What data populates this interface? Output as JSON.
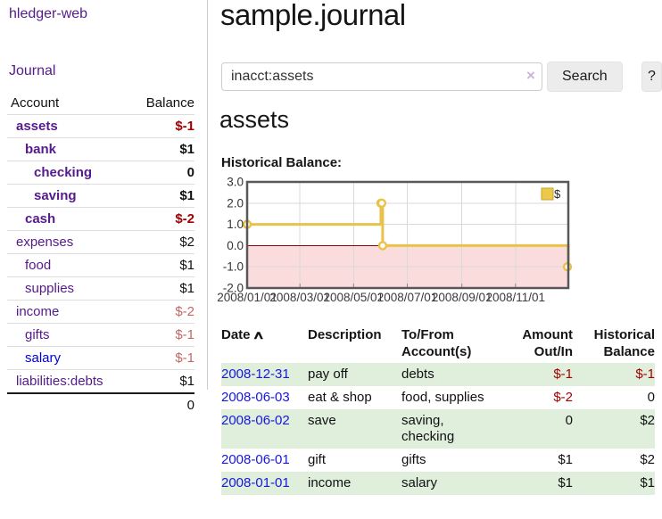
{
  "app": {
    "title": "hledger-web"
  },
  "colors": {
    "link_purple": "#551a8b",
    "link_blue": "#0000e0",
    "negative_strong": "#a40000",
    "negative_soft": "#c06868",
    "stripe_green": "#dfefdc",
    "series_gold": "#e8c24a",
    "chart_negative_bg": "#fadcdc",
    "chart_zero_line": "#8b0000"
  },
  "sidebar": {
    "nav": {
      "journal_label": "Journal"
    },
    "accounts_table": {
      "headers": {
        "account": "Account",
        "balance": "Balance"
      },
      "rows": [
        {
          "account": "assets",
          "indent": 1,
          "bold": true,
          "balance": "$-1",
          "balance_class": "neg-strong"
        },
        {
          "account": "bank",
          "indent": 2,
          "bold": true,
          "balance": "$1",
          "balance_class": "pos"
        },
        {
          "account": "checking",
          "indent": 3,
          "bold": true,
          "balance": "0",
          "balance_class": "pos"
        },
        {
          "account": "saving",
          "indent": 3,
          "bold": true,
          "balance": "$1",
          "balance_class": "pos"
        },
        {
          "account": "cash",
          "indent": 2,
          "bold": true,
          "balance": "$-2",
          "balance_class": "neg-strong"
        },
        {
          "account": "expenses",
          "indent": 1,
          "bold": false,
          "balance": "$2",
          "balance_class": "pos"
        },
        {
          "account": "food",
          "indent": 2,
          "bold": false,
          "balance": "$1",
          "balance_class": "pos"
        },
        {
          "account": "supplies",
          "indent": 2,
          "bold": false,
          "balance": "$1",
          "balance_class": "pos"
        },
        {
          "account": "income",
          "indent": 1,
          "bold": false,
          "balance": "$-2",
          "balance_class": "neg-soft"
        },
        {
          "account": "gifts",
          "indent": 2,
          "bold": false,
          "balance": "$-1",
          "balance_class": "neg-soft"
        },
        {
          "account": "salary",
          "indent": 2,
          "bold": false,
          "balance": "$-1",
          "balance_class": "neg-soft",
          "unvisited": true
        },
        {
          "account": "liabilities:debts",
          "indent": 1,
          "bold": false,
          "balance": "$1",
          "balance_class": "pos"
        }
      ],
      "total": "0"
    }
  },
  "main": {
    "title": "sample.journal",
    "search": {
      "value": "inacct:assets",
      "clear_icon": "×",
      "button_label": "Search",
      "help_label": "?"
    },
    "account_heading": "assets",
    "chart_label": "Historical Balance:"
  },
  "chart_data": {
    "type": "line",
    "step": true,
    "title": "Historical Balance:",
    "series": [
      {
        "name": "$",
        "color": "#e8c24a",
        "points": [
          [
            "2008-01-01",
            1
          ],
          [
            "2008-06-01",
            2
          ],
          [
            "2008-06-02",
            2
          ],
          [
            "2008-06-03",
            0
          ],
          [
            "2008-12-31",
            -1
          ]
        ]
      }
    ],
    "xlim": [
      "2008-01-01",
      "2008-12-31"
    ],
    "ylim": [
      -2,
      3
    ],
    "x_ticks": [
      {
        "date": "2008-01-01",
        "label": "2008/01/01"
      },
      {
        "date": "2008-03-01",
        "label": "2008/03/01"
      },
      {
        "date": "2008-05-01",
        "label": "2008/05/01"
      },
      {
        "date": "2008-07-01",
        "label": "2008/07/01"
      },
      {
        "date": "2008-09-01",
        "label": "2008/09/01"
      },
      {
        "date": "2008-11-01",
        "label": "2008/11/01"
      }
    ],
    "y_ticks": [
      {
        "value": 3,
        "label": "3.0"
      },
      {
        "value": 2,
        "label": "2.0"
      },
      {
        "value": 1,
        "label": "1.0"
      },
      {
        "value": 0,
        "label": "0.0"
      },
      {
        "value": -1,
        "label": "-1.0"
      },
      {
        "value": -2,
        "label": "-2.0"
      }
    ],
    "grid": true,
    "legend": {
      "label": "$",
      "position": "top-right",
      "swatch_color": "#ecc94b"
    },
    "negative_region_color": "#fadcdc",
    "zero_line_color": "#8b0000"
  },
  "register_table": {
    "headers": {
      "date": "Date",
      "sort_icon": "∧",
      "description": "Description",
      "tofrom": [
        "To/From",
        "Account(s)"
      ],
      "amount": [
        "Amount",
        "Out/In"
      ],
      "balance": [
        "Historical",
        "Balance"
      ]
    },
    "rows": [
      {
        "date": "2008-12-31",
        "description": "pay off",
        "accounts": "debts",
        "amount": "$-1",
        "amount_neg": true,
        "balance": "$-1",
        "balance_neg": true
      },
      {
        "date": "2008-06-03",
        "description": "eat & shop",
        "accounts": "food, supplies",
        "amount": "$-2",
        "amount_neg": true,
        "balance": "0",
        "balance_neg": false
      },
      {
        "date": "2008-06-02",
        "description": "save",
        "accounts": "saving, checking",
        "amount": "0",
        "amount_neg": false,
        "balance": "$2",
        "balance_neg": false
      },
      {
        "date": "2008-06-01",
        "description": "gift",
        "accounts": "gifts",
        "amount": "$1",
        "amount_neg": false,
        "balance": "$2",
        "balance_neg": false
      },
      {
        "date": "2008-01-01",
        "description": "income",
        "accounts": "salary",
        "amount": "$1",
        "amount_neg": false,
        "balance": "$1",
        "balance_neg": false
      }
    ]
  }
}
